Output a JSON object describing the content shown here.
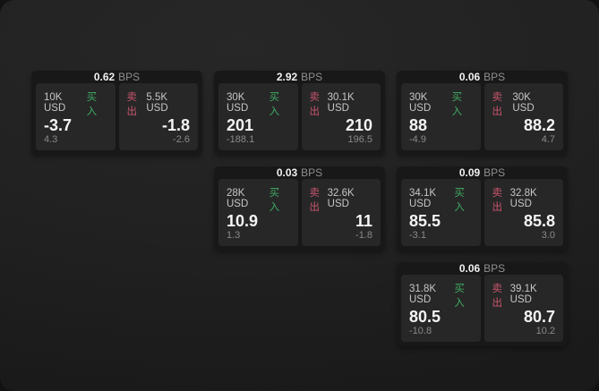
{
  "labels": {
    "bps_unit": "BPS",
    "buy": "买入",
    "sell": "卖出"
  },
  "colors": {
    "buy": "#3fab63",
    "sell": "#c9556d",
    "window_bg": "#212121",
    "card_bg": "#181818",
    "panel_bg": "#272727"
  },
  "cards": [
    {
      "bps": "0.62",
      "col": 1,
      "row": 1,
      "buy": {
        "amount": "10K USD",
        "price": "-3.7",
        "delta": "4.3"
      },
      "sell": {
        "amount": "5.5K USD",
        "price": "-1.8",
        "delta": "-2.6"
      }
    },
    {
      "bps": "2.92",
      "col": 2,
      "row": 1,
      "buy": {
        "amount": "30K USD",
        "price": "201",
        "delta": "-188.1"
      },
      "sell": {
        "amount": "30.1K USD",
        "price": "210",
        "delta": "196.5"
      }
    },
    {
      "bps": "0.06",
      "col": 3,
      "row": 1,
      "buy": {
        "amount": "30K USD",
        "price": "88",
        "delta": "-4.9"
      },
      "sell": {
        "amount": "30K USD",
        "price": "88.2",
        "delta": "4.7"
      }
    },
    {
      "bps": "0.03",
      "col": 2,
      "row": 2,
      "buy": {
        "amount": "28K USD",
        "price": "10.9",
        "delta": "1.3"
      },
      "sell": {
        "amount": "32.6K USD",
        "price": "11",
        "delta": "-1.8"
      }
    },
    {
      "bps": "0.09",
      "col": 3,
      "row": 2,
      "buy": {
        "amount": "34.1K USD",
        "price": "85.5",
        "delta": "-3.1"
      },
      "sell": {
        "amount": "32.8K USD",
        "price": "85.8",
        "delta": "3.0"
      }
    },
    {
      "bps": "0.06",
      "col": 3,
      "row": 3,
      "buy": {
        "amount": "31.8K USD",
        "price": "80.5",
        "delta": "-10.8"
      },
      "sell": {
        "amount": "39.1K USD",
        "price": "80.7",
        "delta": "10.2"
      }
    }
  ]
}
